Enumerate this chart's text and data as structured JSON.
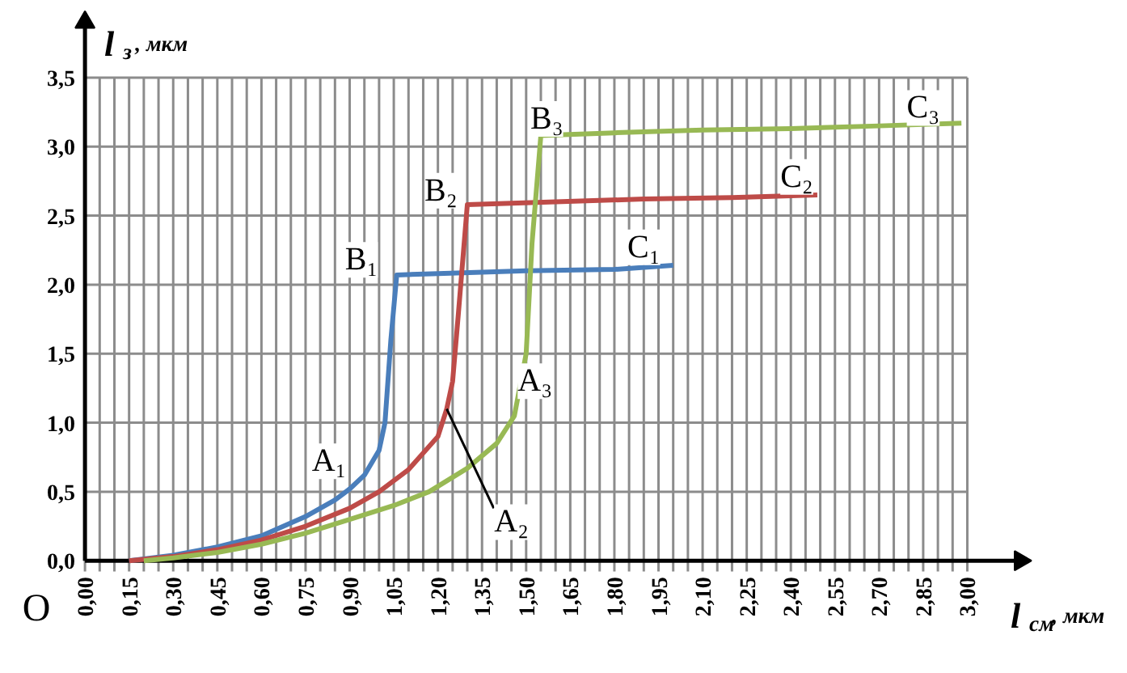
{
  "chart_data": {
    "type": "line",
    "xlabel": "l$_{см}$, мкм",
    "ylabel": "l$_{з}$, мкм",
    "xlim": [
      0,
      3.18
    ],
    "ylim": [
      0,
      3.9
    ],
    "xticks": [
      {
        "value": 0,
        "label": "0,00"
      },
      {
        "value": 0.05,
        "label": null
      },
      {
        "value": 0.1,
        "label": null
      },
      {
        "value": 0.15,
        "label": "0,15"
      },
      {
        "value": 0.2,
        "label": null
      },
      {
        "value": 0.25,
        "label": null
      },
      {
        "value": 0.3,
        "label": "0,30"
      },
      {
        "value": 0.35,
        "label": null
      },
      {
        "value": 0.4,
        "label": null
      },
      {
        "value": 0.45,
        "label": "0,45"
      },
      {
        "value": 0.5,
        "label": null
      },
      {
        "value": 0.55,
        "label": null
      },
      {
        "value": 0.6,
        "label": "0,60"
      },
      {
        "value": 0.65,
        "label": null
      },
      {
        "value": 0.7,
        "label": null
      },
      {
        "value": 0.75,
        "label": "0,75"
      },
      {
        "value": 0.8,
        "label": null
      },
      {
        "value": 0.85,
        "label": null
      },
      {
        "value": 0.9,
        "label": "0,90"
      },
      {
        "value": 0.95,
        "label": null
      },
      {
        "value": 1.0,
        "label": null
      },
      {
        "value": 1.05,
        "label": "1,05"
      },
      {
        "value": 1.1,
        "label": null
      },
      {
        "value": 1.15,
        "label": null
      },
      {
        "value": 1.2,
        "label": "1,20"
      },
      {
        "value": 1.25,
        "label": null
      },
      {
        "value": 1.3,
        "label": null
      },
      {
        "value": 1.35,
        "label": "1,35"
      },
      {
        "value": 1.4,
        "label": null
      },
      {
        "value": 1.45,
        "label": null
      },
      {
        "value": 1.5,
        "label": "1,50"
      },
      {
        "value": 1.55,
        "label": null
      },
      {
        "value": 1.6,
        "label": null
      },
      {
        "value": 1.65,
        "label": "1,65"
      },
      {
        "value": 1.7,
        "label": null
      },
      {
        "value": 1.75,
        "label": null
      },
      {
        "value": 1.8,
        "label": "1,80"
      },
      {
        "value": 1.85,
        "label": null
      },
      {
        "value": 1.9,
        "label": null
      },
      {
        "value": 1.95,
        "label": "1,95"
      },
      {
        "value": 2.0,
        "label": null
      },
      {
        "value": 2.05,
        "label": null
      },
      {
        "value": 2.1,
        "label": "2,10"
      },
      {
        "value": 2.15,
        "label": null
      },
      {
        "value": 2.2,
        "label": null
      },
      {
        "value": 2.25,
        "label": "2,25"
      },
      {
        "value": 2.3,
        "label": null
      },
      {
        "value": 2.35,
        "label": null
      },
      {
        "value": 2.4,
        "label": "2,40"
      },
      {
        "value": 2.45,
        "label": null
      },
      {
        "value": 2.5,
        "label": null
      },
      {
        "value": 2.55,
        "label": "2,55"
      },
      {
        "value": 2.6,
        "label": null
      },
      {
        "value": 2.65,
        "label": null
      },
      {
        "value": 2.7,
        "label": "2,70"
      },
      {
        "value": 2.75,
        "label": null
      },
      {
        "value": 2.8,
        "label": null
      },
      {
        "value": 2.85,
        "label": "2,85"
      },
      {
        "value": 2.9,
        "label": null
      },
      {
        "value": 2.95,
        "label": null
      },
      {
        "value": 3.0,
        "label": "3,00"
      }
    ],
    "yticks": [
      {
        "value": 0,
        "label": "0,0"
      },
      {
        "value": 0.5,
        "label": "0,5"
      },
      {
        "value": 1.0,
        "label": "1,0"
      },
      {
        "value": 1.5,
        "label": "1,5"
      },
      {
        "value": 2.0,
        "label": "2,0"
      },
      {
        "value": 2.5,
        "label": "2,5"
      },
      {
        "value": 3.0,
        "label": "3,0"
      },
      {
        "value": 3.5,
        "label": "3,5"
      }
    ],
    "grid": true,
    "marker": "none",
    "line_style": "solid",
    "series": [
      {
        "color": "#4a7ebb",
        "x": [
          0.15,
          0.3,
          0.45,
          0.6,
          0.75,
          0.85,
          0.9,
          0.95,
          1.0,
          1.02,
          1.04,
          1.06,
          1.2,
          1.5,
          1.8,
          2.0
        ],
        "values": [
          0,
          0.04,
          0.1,
          0.18,
          0.32,
          0.44,
          0.52,
          0.62,
          0.8,
          1.0,
          1.6,
          2.07,
          2.08,
          2.1,
          2.11,
          2.14
        ]
      },
      {
        "color": "#be4b48",
        "x": [
          0.15,
          0.3,
          0.45,
          0.6,
          0.75,
          0.9,
          1.0,
          1.1,
          1.2,
          1.23,
          1.25,
          1.27,
          1.3,
          1.6,
          1.9,
          2.2,
          2.49
        ],
        "values": [
          0,
          0.03,
          0.08,
          0.15,
          0.25,
          0.38,
          0.5,
          0.66,
          0.9,
          1.1,
          1.3,
          1.8,
          2.58,
          2.6,
          2.62,
          2.63,
          2.65
        ]
      },
      {
        "color": "#98b954",
        "x": [
          0.2,
          0.3,
          0.45,
          0.6,
          0.75,
          0.9,
          1.05,
          1.17,
          1.3,
          1.4,
          1.46,
          1.5,
          1.52,
          1.55,
          1.8,
          2.1,
          2.4,
          2.7,
          2.98
        ],
        "values": [
          0,
          0.02,
          0.06,
          0.12,
          0.2,
          0.3,
          0.4,
          0.5,
          0.67,
          0.85,
          1.05,
          1.5,
          2.3,
          3.08,
          3.1,
          3.12,
          3.13,
          3.15,
          3.17
        ]
      }
    ],
    "annotations": [
      "O",
      {
        "text": "A₁",
        "x": 0.83,
        "y": 0.72
      },
      {
        "text": "A₂",
        "x": 1.45,
        "y": 0.28
      },
      {
        "text": "A₃",
        "x": 1.53,
        "y": 1.3
      },
      {
        "text": "B₁",
        "x": 0.94,
        "y": 2.18
      },
      {
        "text": "B₂",
        "x": 1.21,
        "y": 2.68
      },
      {
        "text": "B₃",
        "x": 1.57,
        "y": 3.2
      },
      {
        "text": "C₁",
        "x": 1.9,
        "y": 2.27
      },
      {
        "text": "C₂",
        "x": 2.42,
        "y": 2.78
      },
      {
        "text": "C₃",
        "x": 2.85,
        "y": 3.28
      }
    ]
  }
}
